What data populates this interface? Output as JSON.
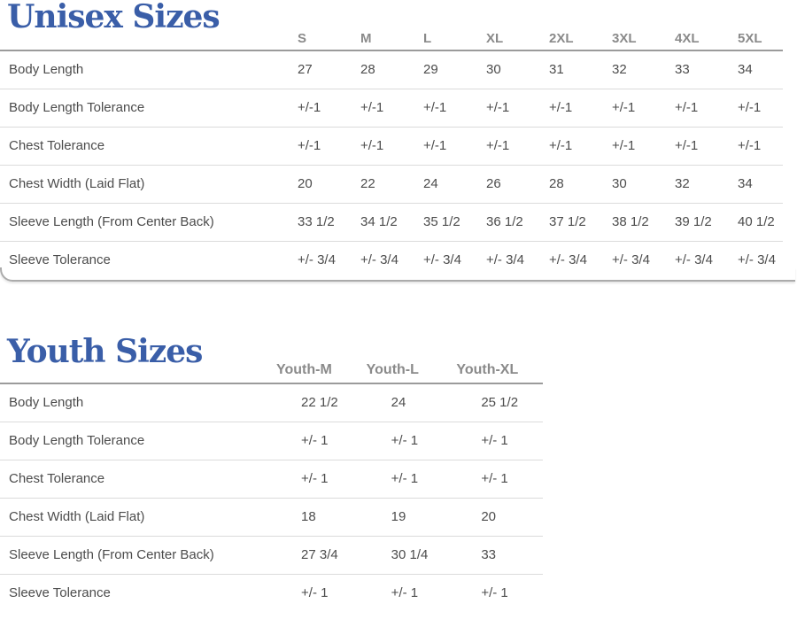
{
  "colors": {
    "title_blue": "#3a5ea8",
    "header_text_gray": "#8a8a8a",
    "body_text_gray": "#4c4c4c",
    "header_rule_gray": "#9b9b9b",
    "row_rule_gray": "#dbdbdb",
    "panel_edge_gray": "#ababab"
  },
  "unisex": {
    "title": "Unisex Sizes",
    "columns": [
      "S",
      "M",
      "L",
      "XL",
      "2XL",
      "3XL",
      "4XL",
      "5XL"
    ],
    "rows": [
      {
        "label": "Body Length",
        "values": [
          "27",
          "28",
          "29",
          "30",
          "31",
          "32",
          "33",
          "34"
        ]
      },
      {
        "label": "Body Length Tolerance",
        "values": [
          "+/-1",
          "+/-1",
          "+/-1",
          "+/-1",
          "+/-1",
          "+/-1",
          "+/-1",
          "+/-1"
        ]
      },
      {
        "label": "Chest Tolerance",
        "values": [
          "+/-1",
          "+/-1",
          "+/-1",
          "+/-1",
          "+/-1",
          "+/-1",
          "+/-1",
          "+/-1"
        ]
      },
      {
        "label": "Chest Width (Laid Flat)",
        "values": [
          "20",
          "22",
          "24",
          "26",
          "28",
          "30",
          "32",
          "34"
        ]
      },
      {
        "label": "Sleeve Length (From Center Back)",
        "values": [
          "33 1/2",
          "34 1/2",
          "35 1/2",
          "36 1/2",
          "37 1/2",
          "38 1/2",
          "39 1/2",
          "40 1/2"
        ]
      },
      {
        "label": "Sleeve Tolerance",
        "values": [
          "+/- 3/4",
          "+/- 3/4",
          "+/- 3/4",
          "+/- 3/4",
          "+/- 3/4",
          "+/- 3/4",
          "+/- 3/4",
          "+/- 3/4"
        ]
      }
    ]
  },
  "youth": {
    "title": "Youth Sizes",
    "columns": [
      "Youth-M",
      "Youth-L",
      "Youth-XL"
    ],
    "rows": [
      {
        "label": "Body Length",
        "values": [
          "22 1/2",
          "24",
          "25 1/2"
        ]
      },
      {
        "label": "Body Length Tolerance",
        "values": [
          "+/- 1",
          "+/- 1",
          "+/- 1"
        ]
      },
      {
        "label": "Chest Tolerance",
        "values": [
          "+/- 1",
          "+/- 1",
          "+/- 1"
        ]
      },
      {
        "label": "Chest Width (Laid Flat)",
        "values": [
          "18",
          "19",
          "20"
        ]
      },
      {
        "label": "Sleeve Length (From Center Back)",
        "values": [
          "27 3/4",
          "30 1/4",
          "33"
        ]
      },
      {
        "label": "Sleeve Tolerance",
        "values": [
          "+/- 1",
          "+/- 1",
          "+/- 1"
        ]
      }
    ]
  }
}
